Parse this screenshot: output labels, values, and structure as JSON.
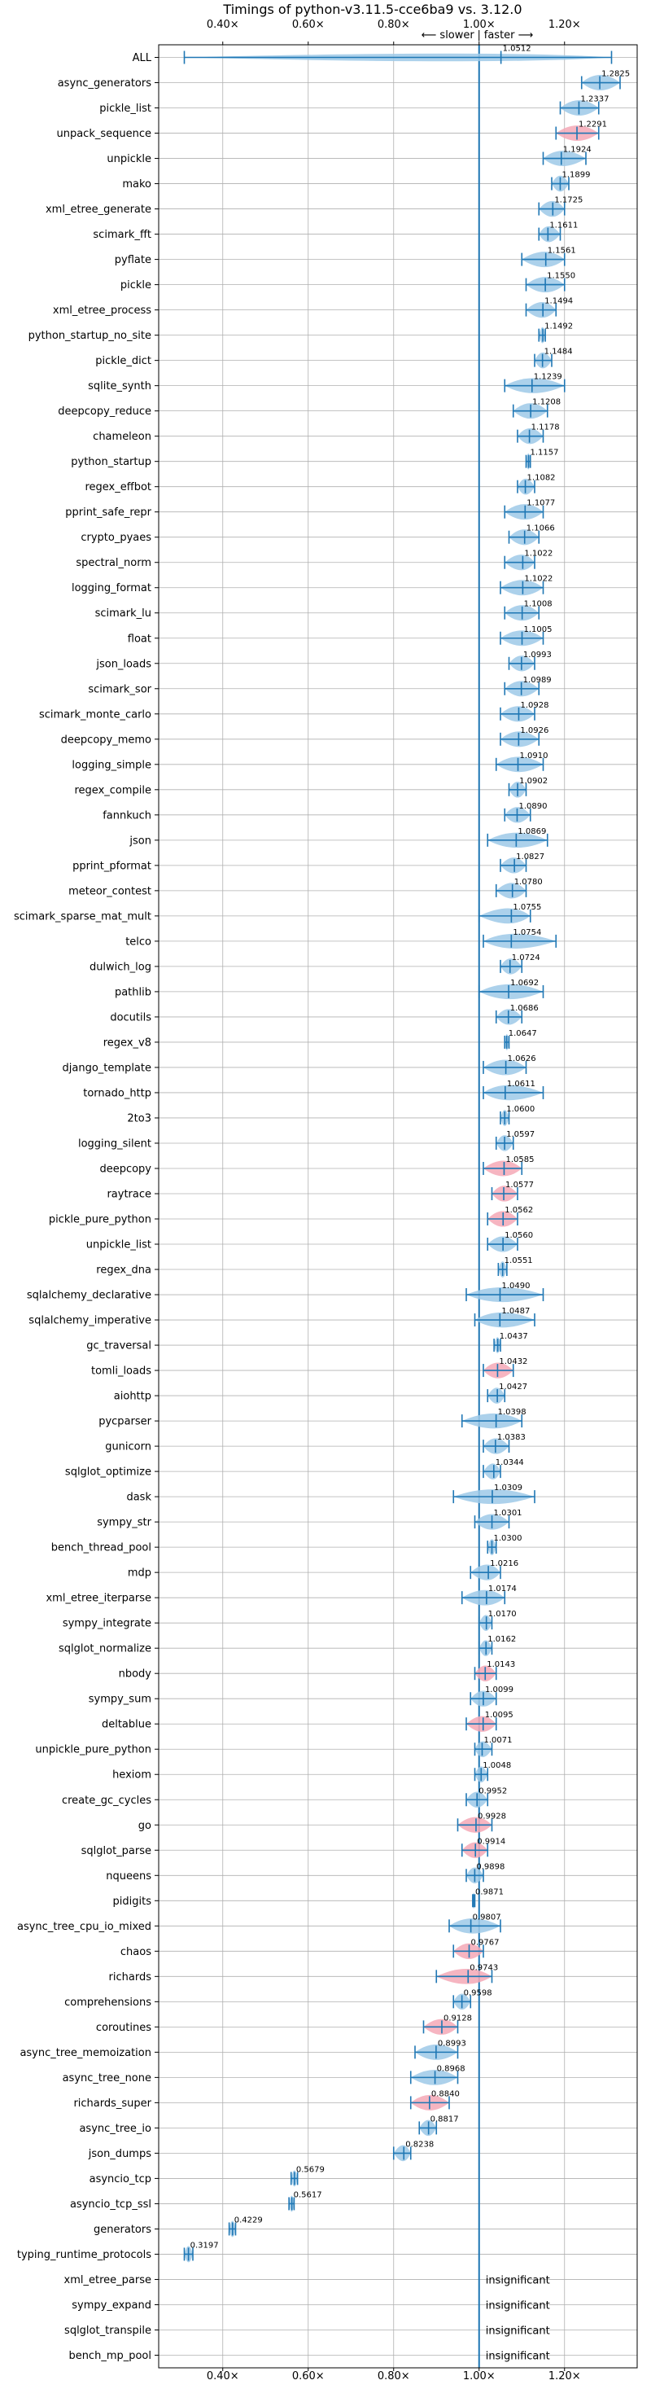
{
  "chart_data": {
    "type": "violin",
    "title": "Timings of python-v3.11.5-cce6ba9 vs. 3.12.0",
    "direction_labels": {
      "slower": "⟵ slower",
      "faster": "faster ⟶",
      "separator": "|"
    },
    "xlim": [
      0.25,
      1.37
    ],
    "x_ticks": [
      0.4,
      0.6,
      0.8,
      1.0,
      1.2
    ],
    "x_tick_labels": [
      "0.40×",
      "0.60×",
      "0.80×",
      "1.00×",
      "1.20×"
    ],
    "grid": true,
    "insignificant_label": "insignificant",
    "benchmarks": [
      {
        "name": "ALL",
        "value": 1.0512,
        "label": "1.0512",
        "low": 0.31,
        "high": 1.31,
        "faster": true
      },
      {
        "name": "async_generators",
        "value": 1.2825,
        "label": "1.2825",
        "low": 1.24,
        "high": 1.33,
        "faster": true
      },
      {
        "name": "pickle_list",
        "value": 1.2337,
        "label": "1.2337",
        "low": 1.19,
        "high": 1.28,
        "faster": true
      },
      {
        "name": "unpack_sequence",
        "value": 1.2291,
        "label": "1.2291",
        "low": 1.18,
        "high": 1.28,
        "faster": false
      },
      {
        "name": "unpickle",
        "value": 1.1924,
        "label": "1.1924",
        "low": 1.15,
        "high": 1.25,
        "faster": true
      },
      {
        "name": "mako",
        "value": 1.1899,
        "label": "1.1899",
        "low": 1.17,
        "high": 1.21,
        "faster": true
      },
      {
        "name": "xml_etree_generate",
        "value": 1.1725,
        "label": "1.1725",
        "low": 1.14,
        "high": 1.2,
        "faster": true
      },
      {
        "name": "scimark_fft",
        "value": 1.1611,
        "label": "1.1611",
        "low": 1.14,
        "high": 1.19,
        "faster": true
      },
      {
        "name": "pyflate",
        "value": 1.1561,
        "label": "1.1561",
        "low": 1.1,
        "high": 1.2,
        "faster": true
      },
      {
        "name": "pickle",
        "value": 1.155,
        "label": "1.1550",
        "low": 1.11,
        "high": 1.2,
        "faster": true
      },
      {
        "name": "xml_etree_process",
        "value": 1.1494,
        "label": "1.1494",
        "low": 1.11,
        "high": 1.18,
        "faster": true
      },
      {
        "name": "python_startup_no_site",
        "value": 1.1492,
        "label": "1.1492",
        "low": 1.14,
        "high": 1.155,
        "faster": true
      },
      {
        "name": "pickle_dict",
        "value": 1.1484,
        "label": "1.1484",
        "low": 1.13,
        "high": 1.17,
        "faster": true
      },
      {
        "name": "sqlite_synth",
        "value": 1.1239,
        "label": "1.1239",
        "low": 1.06,
        "high": 1.2,
        "faster": true
      },
      {
        "name": "deepcopy_reduce",
        "value": 1.1208,
        "label": "1.1208",
        "low": 1.08,
        "high": 1.16,
        "faster": true
      },
      {
        "name": "chameleon",
        "value": 1.1178,
        "label": "1.1178",
        "low": 1.09,
        "high": 1.15,
        "faster": true
      },
      {
        "name": "python_startup",
        "value": 1.1157,
        "label": "1.1157",
        "low": 1.11,
        "high": 1.12,
        "faster": true
      },
      {
        "name": "regex_effbot",
        "value": 1.1082,
        "label": "1.1082",
        "low": 1.09,
        "high": 1.13,
        "faster": true
      },
      {
        "name": "pprint_safe_repr",
        "value": 1.1077,
        "label": "1.1077",
        "low": 1.06,
        "high": 1.15,
        "faster": true
      },
      {
        "name": "crypto_pyaes",
        "value": 1.1066,
        "label": "1.1066",
        "low": 1.07,
        "high": 1.14,
        "faster": true
      },
      {
        "name": "spectral_norm",
        "value": 1.1022,
        "label": "1.1022",
        "low": 1.06,
        "high": 1.13,
        "faster": true
      },
      {
        "name": "logging_format",
        "value": 1.1022,
        "label": "1.1022",
        "low": 1.05,
        "high": 1.15,
        "faster": true
      },
      {
        "name": "scimark_lu",
        "value": 1.1008,
        "label": "1.1008",
        "low": 1.06,
        "high": 1.14,
        "faster": true
      },
      {
        "name": "float",
        "value": 1.1005,
        "label": "1.1005",
        "low": 1.05,
        "high": 1.15,
        "faster": true
      },
      {
        "name": "json_loads",
        "value": 1.0993,
        "label": "1.0993",
        "low": 1.07,
        "high": 1.13,
        "faster": true
      },
      {
        "name": "scimark_sor",
        "value": 1.0989,
        "label": "1.0989",
        "low": 1.06,
        "high": 1.14,
        "faster": true
      },
      {
        "name": "scimark_monte_carlo",
        "value": 1.0928,
        "label": "1.0928",
        "low": 1.05,
        "high": 1.13,
        "faster": true
      },
      {
        "name": "deepcopy_memo",
        "value": 1.0926,
        "label": "1.0926",
        "low": 1.05,
        "high": 1.14,
        "faster": true
      },
      {
        "name": "logging_simple",
        "value": 1.091,
        "label": "1.0910",
        "low": 1.04,
        "high": 1.15,
        "faster": true
      },
      {
        "name": "regex_compile",
        "value": 1.0902,
        "label": "1.0902",
        "low": 1.07,
        "high": 1.11,
        "faster": true
      },
      {
        "name": "fannkuch",
        "value": 1.089,
        "label": "1.0890",
        "low": 1.06,
        "high": 1.12,
        "faster": true
      },
      {
        "name": "json",
        "value": 1.0869,
        "label": "1.0869",
        "low": 1.02,
        "high": 1.16,
        "faster": true
      },
      {
        "name": "pprint_pformat",
        "value": 1.0827,
        "label": "1.0827",
        "low": 1.05,
        "high": 1.11,
        "faster": true
      },
      {
        "name": "meteor_contest",
        "value": 1.078,
        "label": "1.0780",
        "low": 1.04,
        "high": 1.11,
        "faster": true
      },
      {
        "name": "scimark_sparse_mat_mult",
        "value": 1.0755,
        "label": "1.0755",
        "low": 1.0,
        "high": 1.12,
        "faster": true
      },
      {
        "name": "telco",
        "value": 1.0754,
        "label": "1.0754",
        "low": 1.01,
        "high": 1.18,
        "faster": true
      },
      {
        "name": "dulwich_log",
        "value": 1.0724,
        "label": "1.0724",
        "low": 1.05,
        "high": 1.1,
        "faster": true
      },
      {
        "name": "pathlib",
        "value": 1.0692,
        "label": "1.0692",
        "low": 1.0,
        "high": 1.15,
        "faster": true
      },
      {
        "name": "docutils",
        "value": 1.0686,
        "label": "1.0686",
        "low": 1.04,
        "high": 1.1,
        "faster": true
      },
      {
        "name": "regex_v8",
        "value": 1.0647,
        "label": "1.0647",
        "low": 1.06,
        "high": 1.07,
        "faster": true
      },
      {
        "name": "django_template",
        "value": 1.0626,
        "label": "1.0626",
        "low": 1.01,
        "high": 1.11,
        "faster": true
      },
      {
        "name": "tornado_http",
        "value": 1.0611,
        "label": "1.0611",
        "low": 1.01,
        "high": 1.15,
        "faster": true
      },
      {
        "name": "2to3",
        "value": 1.06,
        "label": "1.0600",
        "low": 1.05,
        "high": 1.07,
        "faster": true
      },
      {
        "name": "logging_silent",
        "value": 1.0597,
        "label": "1.0597",
        "low": 1.04,
        "high": 1.08,
        "faster": true
      },
      {
        "name": "deepcopy",
        "value": 1.0585,
        "label": "1.0585",
        "low": 1.01,
        "high": 1.1,
        "faster": false
      },
      {
        "name": "raytrace",
        "value": 1.0577,
        "label": "1.0577",
        "low": 1.03,
        "high": 1.09,
        "faster": false
      },
      {
        "name": "pickle_pure_python",
        "value": 1.0562,
        "label": "1.0562",
        "low": 1.02,
        "high": 1.09,
        "faster": false
      },
      {
        "name": "unpickle_list",
        "value": 1.056,
        "label": "1.0560",
        "low": 1.02,
        "high": 1.09,
        "faster": true
      },
      {
        "name": "regex_dna",
        "value": 1.0551,
        "label": "1.0551",
        "low": 1.045,
        "high": 1.065,
        "faster": true
      },
      {
        "name": "sqlalchemy_declarative",
        "value": 1.049,
        "label": "1.0490",
        "low": 0.97,
        "high": 1.15,
        "faster": true
      },
      {
        "name": "sqlalchemy_imperative",
        "value": 1.0487,
        "label": "1.0487",
        "low": 0.99,
        "high": 1.13,
        "faster": true
      },
      {
        "name": "gc_traversal",
        "value": 1.0437,
        "label": "1.0437",
        "low": 1.035,
        "high": 1.05,
        "faster": true
      },
      {
        "name": "tomli_loads",
        "value": 1.0432,
        "label": "1.0432",
        "low": 1.01,
        "high": 1.08,
        "faster": false
      },
      {
        "name": "aiohttp",
        "value": 1.0427,
        "label": "1.0427",
        "low": 1.02,
        "high": 1.06,
        "faster": true
      },
      {
        "name": "pycparser",
        "value": 1.0398,
        "label": "1.0398",
        "low": 0.96,
        "high": 1.1,
        "faster": true
      },
      {
        "name": "gunicorn",
        "value": 1.0383,
        "label": "1.0383",
        "low": 1.01,
        "high": 1.07,
        "faster": true
      },
      {
        "name": "sqlglot_optimize",
        "value": 1.0344,
        "label": "1.0344",
        "low": 1.01,
        "high": 1.05,
        "faster": true
      },
      {
        "name": "dask",
        "value": 1.0309,
        "label": "1.0309",
        "low": 0.94,
        "high": 1.13,
        "faster": true
      },
      {
        "name": "sympy_str",
        "value": 1.0301,
        "label": "1.0301",
        "low": 0.99,
        "high": 1.07,
        "faster": true
      },
      {
        "name": "bench_thread_pool",
        "value": 1.03,
        "label": "1.0300",
        "low": 1.02,
        "high": 1.04,
        "faster": true
      },
      {
        "name": "mdp",
        "value": 1.0216,
        "label": "1.0216",
        "low": 0.98,
        "high": 1.05,
        "faster": true
      },
      {
        "name": "xml_etree_iterparse",
        "value": 1.0174,
        "label": "1.0174",
        "low": 0.96,
        "high": 1.06,
        "faster": true
      },
      {
        "name": "sympy_integrate",
        "value": 1.017,
        "label": "1.0170",
        "low": 1.0,
        "high": 1.03,
        "faster": true
      },
      {
        "name": "sqlglot_normalize",
        "value": 1.0162,
        "label": "1.0162",
        "low": 1.0,
        "high": 1.03,
        "faster": true
      },
      {
        "name": "nbody",
        "value": 1.0143,
        "label": "1.0143",
        "low": 0.99,
        "high": 1.04,
        "faster": false
      },
      {
        "name": "sympy_sum",
        "value": 1.0099,
        "label": "1.0099",
        "low": 0.98,
        "high": 1.04,
        "faster": true
      },
      {
        "name": "deltablue",
        "value": 1.0095,
        "label": "1.0095",
        "low": 0.97,
        "high": 1.04,
        "faster": false
      },
      {
        "name": "unpickle_pure_python",
        "value": 1.0071,
        "label": "1.0071",
        "low": 0.99,
        "high": 1.03,
        "faster": true
      },
      {
        "name": "hexiom",
        "value": 1.0048,
        "label": "1.0048",
        "low": 0.99,
        "high": 1.02,
        "faster": true
      },
      {
        "name": "create_gc_cycles",
        "value": 0.9952,
        "label": "0.9952",
        "low": 0.97,
        "high": 1.02,
        "faster": true
      },
      {
        "name": "go",
        "value": 0.9928,
        "label": "0.9928",
        "low": 0.95,
        "high": 1.03,
        "faster": false
      },
      {
        "name": "sqlglot_parse",
        "value": 0.9914,
        "label": "0.9914",
        "low": 0.96,
        "high": 1.02,
        "faster": false
      },
      {
        "name": "nqueens",
        "value": 0.9898,
        "label": "0.9898",
        "low": 0.97,
        "high": 1.01,
        "faster": true
      },
      {
        "name": "pidigits",
        "value": 0.9871,
        "label": "0.9871",
        "low": 0.985,
        "high": 0.99,
        "faster": true
      },
      {
        "name": "async_tree_cpu_io_mixed",
        "value": 0.9807,
        "label": "0.9807",
        "low": 0.93,
        "high": 1.05,
        "faster": true
      },
      {
        "name": "chaos",
        "value": 0.9767,
        "label": "0.9767",
        "low": 0.94,
        "high": 1.01,
        "faster": false
      },
      {
        "name": "richards",
        "value": 0.9743,
        "label": "0.9743",
        "low": 0.9,
        "high": 1.03,
        "faster": false
      },
      {
        "name": "comprehensions",
        "value": 0.9598,
        "label": "0.9598",
        "low": 0.94,
        "high": 0.98,
        "faster": true
      },
      {
        "name": "coroutines",
        "value": 0.9128,
        "label": "0.9128",
        "low": 0.87,
        "high": 0.95,
        "faster": false
      },
      {
        "name": "async_tree_memoization",
        "value": 0.8993,
        "label": "0.8993",
        "low": 0.85,
        "high": 0.95,
        "faster": true
      },
      {
        "name": "async_tree_none",
        "value": 0.8968,
        "label": "0.8968",
        "low": 0.84,
        "high": 0.95,
        "faster": true
      },
      {
        "name": "richards_super",
        "value": 0.884,
        "label": "0.8840",
        "low": 0.84,
        "high": 0.93,
        "faster": false
      },
      {
        "name": "async_tree_io",
        "value": 0.8817,
        "label": "0.8817",
        "low": 0.86,
        "high": 0.9,
        "faster": true
      },
      {
        "name": "json_dumps",
        "value": 0.8238,
        "label": "0.8238",
        "low": 0.8,
        "high": 0.84,
        "faster": true
      },
      {
        "name": "asyncio_tcp",
        "value": 0.5679,
        "label": "0.5679",
        "low": 0.56,
        "high": 0.575,
        "faster": true
      },
      {
        "name": "asyncio_tcp_ssl",
        "value": 0.5617,
        "label": "0.5617",
        "low": 0.555,
        "high": 0.567,
        "faster": true
      },
      {
        "name": "generators",
        "value": 0.4229,
        "label": "0.4229",
        "low": 0.415,
        "high": 0.43,
        "faster": true
      },
      {
        "name": "typing_runtime_protocols",
        "value": 0.3197,
        "label": "0.3197",
        "low": 0.31,
        "high": 0.33,
        "faster": true
      },
      {
        "name": "xml_etree_parse",
        "insignificant": true
      },
      {
        "name": "sympy_expand",
        "insignificant": true
      },
      {
        "name": "sqlglot_transpile",
        "insignificant": true
      },
      {
        "name": "bench_mp_pool",
        "insignificant": true
      }
    ],
    "colors": {
      "blue_violin": "#9ec9e8",
      "red_violin": "#f4a8b6",
      "bar": "#1f77b4",
      "grid": "#b0b0b0",
      "axis": "#000000"
    }
  }
}
